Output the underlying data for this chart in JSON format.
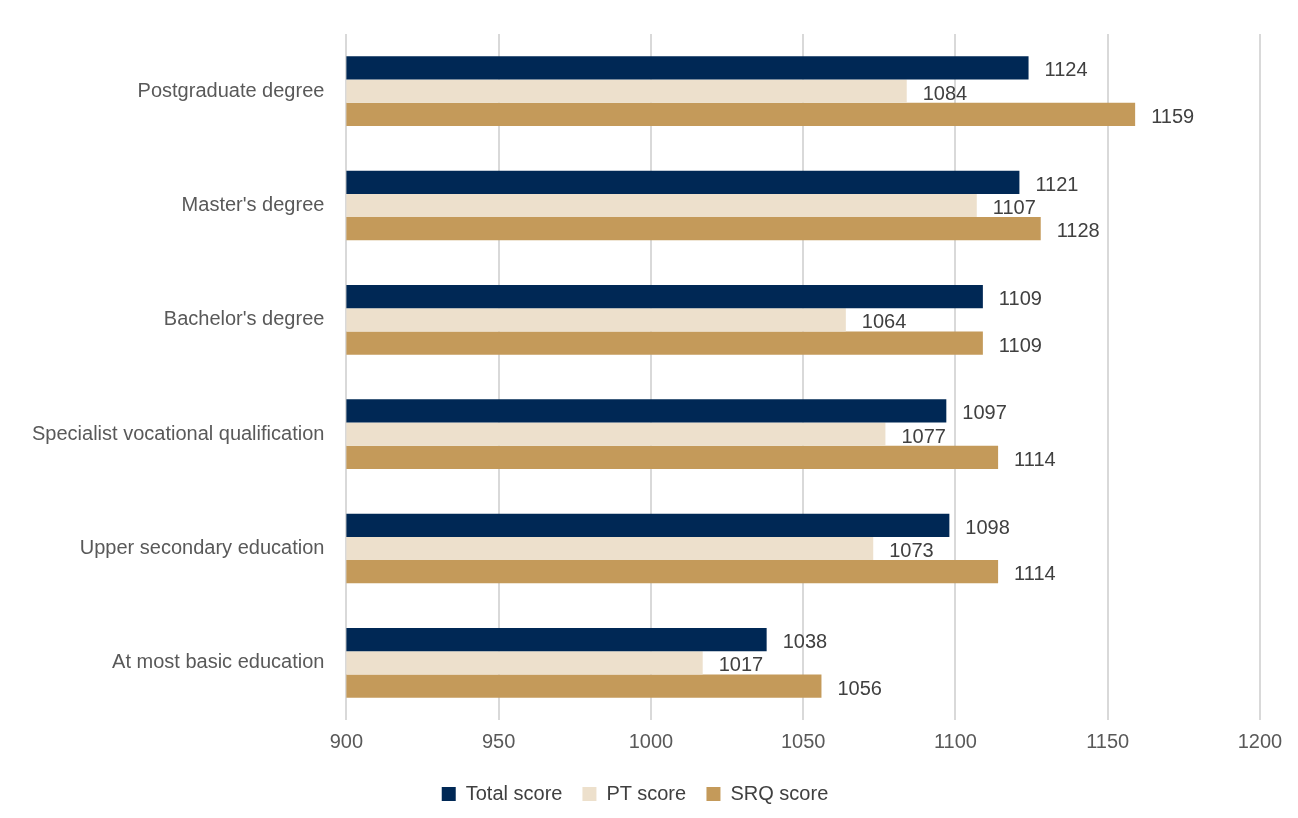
{
  "chart_data": {
    "type": "bar",
    "orientation": "horizontal",
    "categories": [
      "Postgraduate degree",
      "Master's degree",
      "Bachelor's degree",
      "Specialist vocational qualification",
      "Upper secondary education",
      "At most basic education"
    ],
    "series": [
      {
        "name": "Total score",
        "color": "#002855",
        "values": [
          1124,
          1121,
          1109,
          1097,
          1098,
          1038
        ]
      },
      {
        "name": "PT score",
        "color": "#ede0cc",
        "values": [
          1084,
          1107,
          1064,
          1077,
          1073,
          1017
        ]
      },
      {
        "name": "SRQ score",
        "color": "#c49a5a",
        "values": [
          1159,
          1128,
          1109,
          1114,
          1114,
          1056
        ]
      }
    ],
    "xlim": [
      900,
      1200
    ],
    "xticks": [
      900,
      950,
      1000,
      1050,
      1100,
      1150,
      1200
    ],
    "grid": "x",
    "legend": "bottom",
    "data_labels": true
  }
}
